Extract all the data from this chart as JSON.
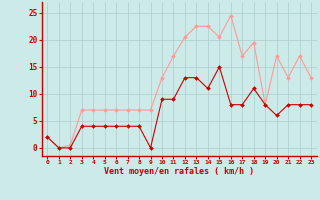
{
  "x": [
    0,
    1,
    2,
    3,
    4,
    5,
    6,
    7,
    8,
    9,
    10,
    11,
    12,
    13,
    14,
    15,
    16,
    17,
    18,
    19,
    20,
    21,
    22,
    23
  ],
  "avg_wind": [
    2,
    0,
    0,
    4,
    4,
    4,
    4,
    4,
    4,
    0,
    9,
    9,
    13,
    13,
    11,
    15,
    8,
    8,
    11,
    8,
    6,
    8,
    8,
    8
  ],
  "gust_wind": [
    2,
    0,
    0.5,
    7,
    7,
    7,
    7,
    7,
    7,
    7,
    13,
    17,
    20.5,
    22.5,
    22.5,
    20.5,
    24.5,
    17,
    19.5,
    8,
    17,
    13,
    17,
    13
  ],
  "bg_color": "#cceae7",
  "grid_color": "#aacccc",
  "avg_color": "#cc0000",
  "gust_color": "#ff9999",
  "xlabel": "Vent moyen/en rafales ( km/h )",
  "yticks": [
    0,
    5,
    10,
    15,
    20,
    25
  ],
  "xticks": [
    0,
    1,
    2,
    3,
    4,
    5,
    6,
    7,
    8,
    9,
    10,
    11,
    12,
    13,
    14,
    15,
    16,
    17,
    18,
    19,
    20,
    21,
    22,
    23
  ],
  "ylim": [
    -1.5,
    27
  ],
  "xlim": [
    -0.5,
    23.5
  ]
}
